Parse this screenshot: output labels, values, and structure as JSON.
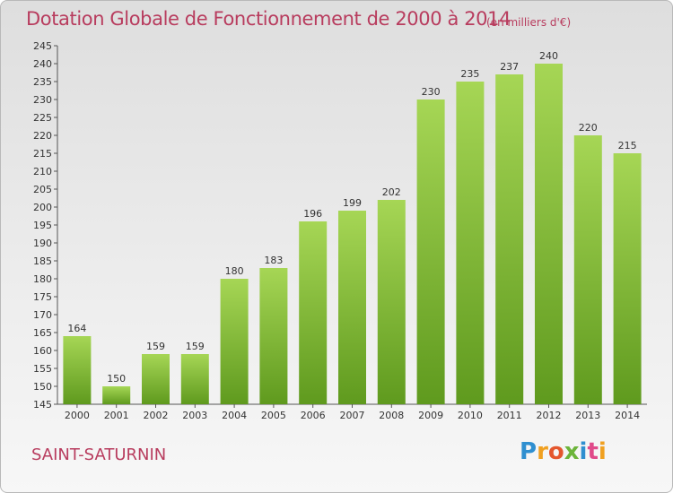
{
  "header": {
    "title": "Dotation Globale de Fonctionnement de 2000 à 2014",
    "unit": "(en milliers d'€)"
  },
  "footer": {
    "commune": "SAINT-SATURNIN",
    "logo": {
      "p": "P",
      "r": "r",
      "o": "o",
      "x": "x",
      "i": "i",
      "t": "t",
      "i2": "i"
    }
  },
  "colors": {
    "bar_top": "#a6d655",
    "bar_bottom": "#5f9a1e",
    "title": "#b83c5e"
  },
  "chart_data": {
    "type": "bar",
    "title": "Dotation Globale de Fonctionnement de 2000 à 2014",
    "subtitle": "(en milliers d'€)",
    "xlabel": "",
    "ylabel": "",
    "categories": [
      "2000",
      "2001",
      "2002",
      "2003",
      "2004",
      "2005",
      "2006",
      "2007",
      "2008",
      "2009",
      "2010",
      "2011",
      "2012",
      "2013",
      "2014"
    ],
    "values": [
      164,
      150,
      159,
      159,
      180,
      183,
      196,
      199,
      202,
      230,
      235,
      237,
      240,
      220,
      215
    ],
    "ylim": [
      145,
      245
    ],
    "yticks": [
      145,
      150,
      155,
      160,
      165,
      170,
      175,
      180,
      185,
      190,
      195,
      200,
      205,
      210,
      215,
      220,
      225,
      230,
      235,
      240,
      245
    ],
    "grid": false,
    "legend": "none"
  }
}
